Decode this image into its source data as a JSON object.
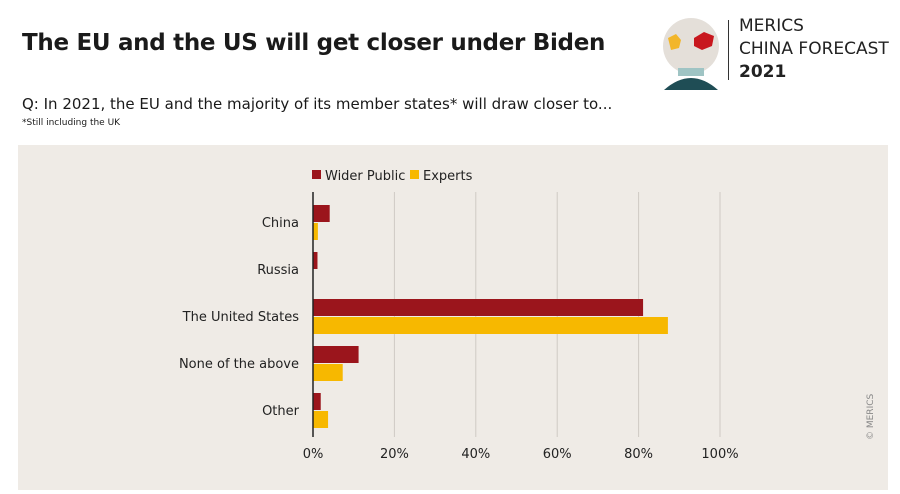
{
  "header": {
    "title": "The EU and the US will get closer under Biden",
    "question": "Q: In 2021, the EU and the majority of its member states* will draw closer to...",
    "footnote": "*Still including the UK"
  },
  "logo": {
    "line1": "MERICS",
    "line2": "CHINA FORECAST",
    "year": "2021"
  },
  "copyright": "© MERICS",
  "colors": {
    "wider_public": "#9b151c",
    "experts": "#f7b800",
    "panel": "#efebe6"
  },
  "chart_data": {
    "type": "bar",
    "orientation": "horizontal",
    "categories": [
      "China",
      "Russia",
      "The United States",
      "None of the above",
      "Other"
    ],
    "series": [
      {
        "name": "Wider Public",
        "values": [
          4.1,
          1.1,
          81.1,
          11.2,
          1.9
        ]
      },
      {
        "name": "Experts",
        "values": [
          1.2,
          0,
          87.2,
          7.3,
          3.7
        ]
      }
    ],
    "xlim": [
      0,
      100
    ],
    "xticks": [
      "0%",
      "20%",
      "40%",
      "60%",
      "80%",
      "100%"
    ],
    "grid": true,
    "legend": "top-center"
  }
}
